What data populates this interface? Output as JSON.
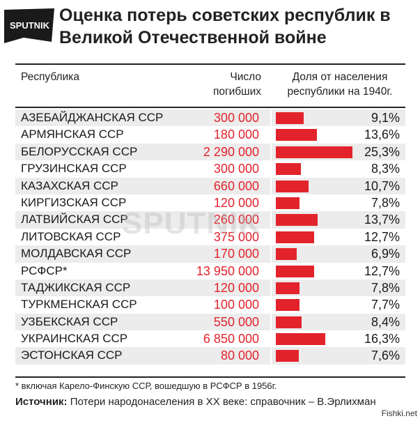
{
  "brand": {
    "logo_text": "SPUTNIK",
    "watermark": "SPUTNIK",
    "site": "Fishki.net"
  },
  "title": "Оценка потерь советских республик в Великой Отечественной войне",
  "headers": {
    "republic": "Республика",
    "deaths_line1": "Число",
    "deaths_line2": "погибших",
    "share_line1": "Доля от населения",
    "share_line2": "республики на 1940г."
  },
  "colors": {
    "accent": "#e3232b",
    "row_alt": "#ececec"
  },
  "chart_data": {
    "type": "table",
    "title": "Оценка потерь советских республик в Великой Отечественной войне",
    "columns": [
      "Республика",
      "Число погибших",
      "Доля от населения республики на 1940г."
    ],
    "bar_max_percent": 25.3,
    "rows": [
      {
        "name": "АЗЕБАЙДЖАНСКАЯ ССР",
        "deaths": "300 000",
        "share": 9.1,
        "share_label": "9,1%"
      },
      {
        "name": "АРМЯНСКАЯ ССР",
        "deaths": "180 000",
        "share": 13.6,
        "share_label": "13,6%"
      },
      {
        "name": "БЕЛОРУССКАЯ ССР",
        "deaths": "2 290 000",
        "share": 25.3,
        "share_label": "25,3%"
      },
      {
        "name": "ГРУЗИНСКАЯ ССР",
        "deaths": "300 000",
        "share": 8.3,
        "share_label": "8,3%"
      },
      {
        "name": "КАЗАХСКАЯ ССР",
        "deaths": "660 000",
        "share": 10.7,
        "share_label": "10,7%"
      },
      {
        "name": "КИРГИЗСКАЯ ССР",
        "deaths": "120 000",
        "share": 7.8,
        "share_label": "7,8%"
      },
      {
        "name": "ЛАТВИЙСКАЯ ССР",
        "deaths": "260 000",
        "share": 13.7,
        "share_label": "13,7%"
      },
      {
        "name": "ЛИТОВСКАЯ ССР",
        "deaths": "375 000",
        "share": 12.7,
        "share_label": "12,7%"
      },
      {
        "name": "МОЛДАВСКАЯ ССР",
        "deaths": "170 000",
        "share": 6.9,
        "share_label": "6,9%"
      },
      {
        "name": "РСФСР*",
        "deaths": "13 950 000",
        "share": 12.7,
        "share_label": "12,7%"
      },
      {
        "name": "ТАДЖИКСКАЯ ССР",
        "deaths": "120 000",
        "share": 7.8,
        "share_label": "7,8%"
      },
      {
        "name": "ТУРКМЕНСКАЯ ССР",
        "deaths": "100 000",
        "share": 7.7,
        "share_label": "7,7%"
      },
      {
        "name": "УЗБЕКСКАЯ ССР",
        "deaths": "550 000",
        "share": 8.4,
        "share_label": "8,4%"
      },
      {
        "name": "УКРАИНСКАЯ ССР",
        "deaths": "6 850 000",
        "share": 16.3,
        "share_label": "16,3%"
      },
      {
        "name": "ЭСТОНСКАЯ ССР",
        "deaths": "80 000",
        "share": 7.6,
        "share_label": "7,6%"
      }
    ]
  },
  "footnote": "* включая Карело-Финскую ССР, вошедшую в РСФСР в 1956г.",
  "source": {
    "label": "Источник:",
    "text": " Потери народонаселения в XX веке: справочник – В.Эрлихман"
  }
}
